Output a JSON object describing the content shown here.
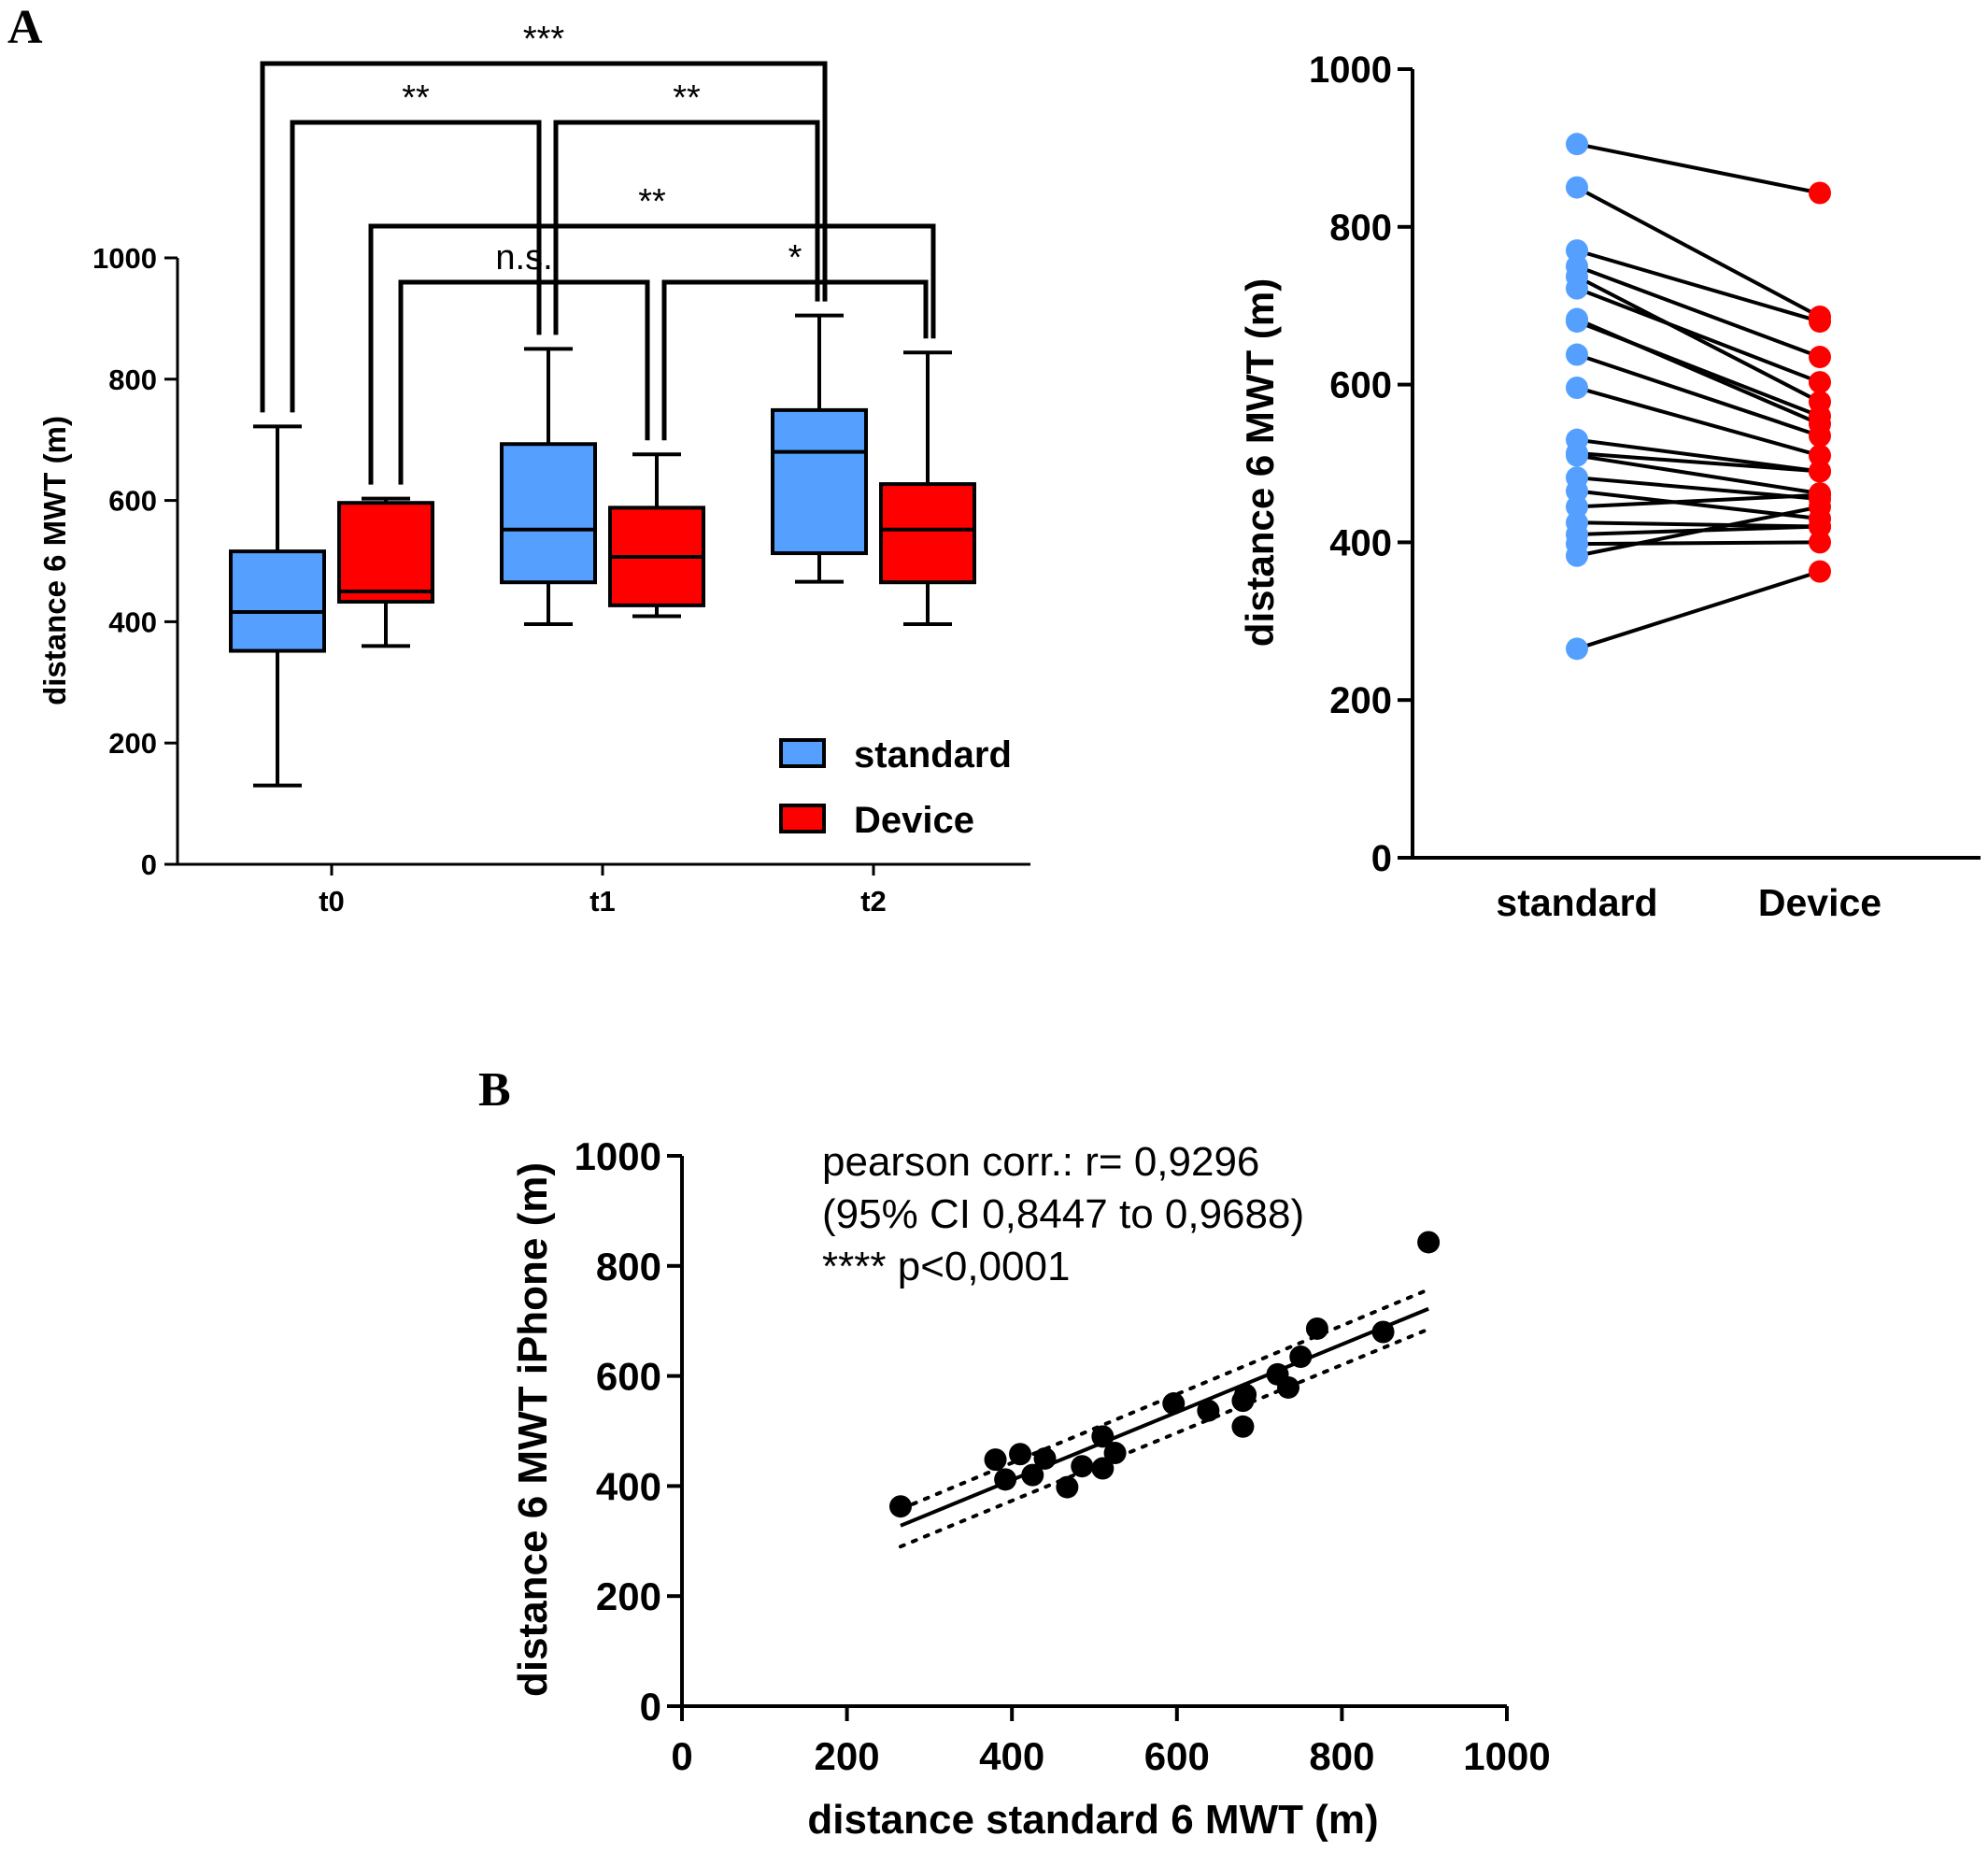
{
  "panel_labels": {
    "a": "A",
    "b": "B"
  },
  "colors": {
    "standard": "#55A0FF",
    "device": "#FF0000",
    "ink": "#000000"
  },
  "chart_data": [
    {
      "id": "box",
      "type": "box",
      "ylabel": "distance 6 MWT (m)",
      "ylim": [
        0,
        1000
      ],
      "yticks": [
        "0",
        "200",
        "400",
        "600",
        "800",
        "1000"
      ],
      "categories": [
        "t0",
        "t1",
        "t2"
      ],
      "legend_placement": "bottom-right",
      "series": [
        {
          "name": "standard",
          "color": "#55A0FF",
          "boxes": [
            {
              "min": 130,
              "q1": 352,
              "median": 416,
              "q3": 516,
              "max": 722
            },
            {
              "min": 396,
              "q1": 465,
              "median": 552,
              "q3": 693,
              "max": 850
            },
            {
              "min": 466,
              "q1": 513,
              "median": 680,
              "q3": 749,
              "max": 905
            }
          ]
        },
        {
          "name": "Device",
          "color": "#FF0000",
          "boxes": [
            {
              "min": 360,
              "q1": 433,
              "median": 450,
              "q3": 596,
              "max": 603
            },
            {
              "min": 409,
              "q1": 427,
              "median": 507,
              "q3": 588,
              "max": 676
            },
            {
              "min": 396,
              "q1": 465,
              "median": 552,
              "q3": 627,
              "max": 844
            }
          ]
        }
      ],
      "significance": [
        {
          "from": "t0 standard",
          "to": "t2 standard",
          "label": "***"
        },
        {
          "from": "t0 standard",
          "to": "t1 standard",
          "label": "**"
        },
        {
          "from": "t1 standard",
          "to": "t2 standard",
          "label": "**"
        },
        {
          "from": "t0 Device",
          "to": "t2 Device",
          "label": "**"
        },
        {
          "from": "t0 Device",
          "to": "t1 Device",
          "label": "n.s."
        },
        {
          "from": "t1 Device",
          "to": "t2 Device",
          "label": "*"
        }
      ]
    },
    {
      "id": "paired",
      "type": "line",
      "ylabel": "distance 6 MWT (m)",
      "ylim": [
        0,
        1000
      ],
      "yticks": [
        "0",
        "200",
        "400",
        "600",
        "800",
        "1000"
      ],
      "categories": [
        "standard",
        "Device"
      ],
      "pairs": [
        [
          905,
          843
        ],
        [
          850,
          686
        ],
        [
          770,
          680
        ],
        [
          750,
          635
        ],
        [
          737,
          578
        ],
        [
          722,
          603
        ],
        [
          683,
          550
        ],
        [
          680,
          560
        ],
        [
          638,
          535
        ],
        [
          596,
          510
        ],
        [
          530,
          490
        ],
        [
          513,
          490
        ],
        [
          510,
          462
        ],
        [
          482,
          455
        ],
        [
          465,
          430
        ],
        [
          445,
          460
        ],
        [
          425,
          420
        ],
        [
          410,
          420
        ],
        [
          398,
          400
        ],
        [
          383,
          445
        ],
        [
          265,
          363
        ]
      ]
    },
    {
      "id": "scatter",
      "type": "scatter",
      "xlabel": "distance standard 6 MWT (m)",
      "ylabel": "distance 6 MWT iPhone (m)",
      "xlim": [
        0,
        1000
      ],
      "ylim": [
        0,
        1000
      ],
      "xticks": [
        "0",
        "200",
        "400",
        "600",
        "800",
        "1000"
      ],
      "yticks": [
        "0",
        "200",
        "400",
        "600",
        "800",
        "1000"
      ],
      "annotation": [
        "pearson corr.: r= 0,9296",
        "(95% CI 0,8447 to 0,9688)",
        "**** p<0,0001"
      ],
      "points": [
        [
          265,
          363
        ],
        [
          380,
          448
        ],
        [
          392,
          412
        ],
        [
          410,
          458
        ],
        [
          425,
          420
        ],
        [
          440,
          450
        ],
        [
          467,
          398
        ],
        [
          485,
          436
        ],
        [
          510,
          490
        ],
        [
          510,
          432
        ],
        [
          525,
          460
        ],
        [
          596,
          550
        ],
        [
          638,
          537
        ],
        [
          680,
          555
        ],
        [
          683,
          566
        ],
        [
          680,
          508
        ],
        [
          722,
          603
        ],
        [
          735,
          579
        ],
        [
          750,
          635
        ],
        [
          770,
          686
        ],
        [
          850,
          680
        ],
        [
          905,
          843
        ]
      ],
      "fit": {
        "x": [
          265,
          905
        ],
        "y": [
          328,
          722
        ]
      },
      "ci_band": {
        "x": [
          265,
          905
        ],
        "upper": [
          358,
          757
        ],
        "lower": [
          290,
          685
        ]
      }
    }
  ]
}
